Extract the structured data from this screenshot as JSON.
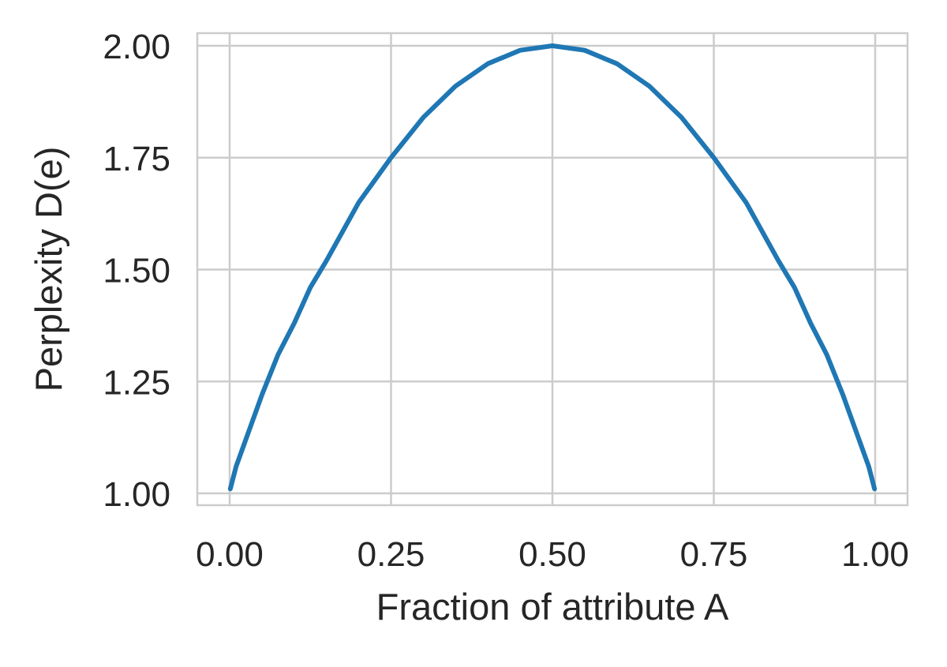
{
  "chart_data": {
    "type": "line",
    "title": "",
    "xlabel": "Fraction of attribute A",
    "ylabel": "Perplexity D(e)",
    "xlim": [
      0.0,
      1.0
    ],
    "ylim": [
      1.0,
      2.0
    ],
    "xticks": [
      0.0,
      0.25,
      0.5,
      0.75,
      1.0
    ],
    "xtick_labels": [
      "0.00",
      "0.25",
      "0.50",
      "0.75",
      "1.00"
    ],
    "yticks": [
      1.0,
      1.25,
      1.5,
      1.75,
      2.0
    ],
    "ytick_labels": [
      "1.00",
      "1.25",
      "1.50",
      "1.75",
      "2.00"
    ],
    "grid": true,
    "legend": null,
    "series": [
      {
        "color": "#1f77b4",
        "x": [
          0.001,
          0.01,
          0.02,
          0.03,
          0.05,
          0.075,
          0.1,
          0.125,
          0.15,
          0.2,
          0.25,
          0.3,
          0.35,
          0.4,
          0.45,
          0.5,
          0.55,
          0.6,
          0.65,
          0.7,
          0.75,
          0.8,
          0.85,
          0.875,
          0.9,
          0.925,
          0.95,
          0.97,
          0.98,
          0.99,
          0.999
        ],
        "y": [
          1.01,
          1.06,
          1.1,
          1.14,
          1.22,
          1.31,
          1.38,
          1.46,
          1.52,
          1.65,
          1.75,
          1.84,
          1.91,
          1.96,
          1.99,
          2.0,
          1.99,
          1.96,
          1.91,
          1.84,
          1.75,
          1.65,
          1.52,
          1.46,
          1.38,
          1.31,
          1.22,
          1.14,
          1.1,
          1.06,
          1.01
        ]
      }
    ]
  }
}
